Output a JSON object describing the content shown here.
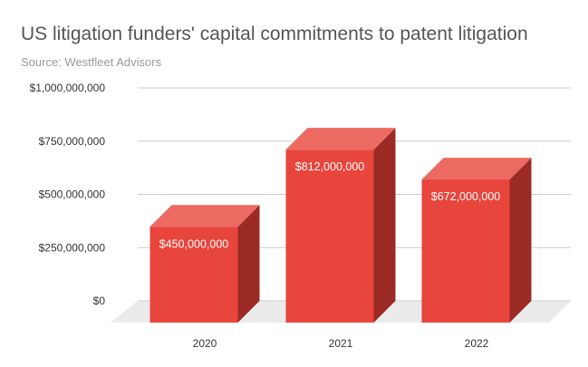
{
  "chart_data": {
    "type": "bar",
    "title": "US litigation funders' capital commitments to patent litigation",
    "subtitle": "Source: Westfleet Advisors",
    "categories": [
      "2020",
      "2021",
      "2022"
    ],
    "values": [
      450000000,
      812000000,
      672000000
    ],
    "data_labels": [
      "$450,000,000",
      "$812,000,000",
      "$672,000,000"
    ],
    "y_ticks": [
      0,
      250000000,
      500000000,
      750000000,
      1000000000
    ],
    "y_tick_labels": [
      "$0",
      "$250,000,000",
      "$500,000,000",
      "$750,000,000",
      "$1,000,000,000"
    ],
    "ylim": [
      0,
      1000000000
    ],
    "xlabel": "",
    "ylabel": "",
    "grid": true,
    "legend": "none",
    "style": "3d",
    "colors": {
      "bar_front": "#e8453c",
      "bar_top": "#ec6a61",
      "bar_side": "#9c2a24",
      "floor": "#ebebeb",
      "grid": "#cccccc"
    }
  }
}
